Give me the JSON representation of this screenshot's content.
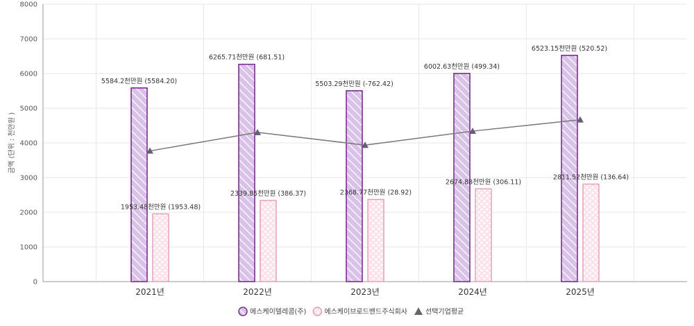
{
  "chart_data": {
    "type": "bar",
    "ylabel": "금액 (단위 : 천만원 )",
    "ylim": [
      0,
      8000
    ],
    "yticks": [
      "0",
      "1000",
      "2000",
      "3000",
      "4000",
      "5000",
      "6000",
      "7000",
      "8000"
    ],
    "categories": [
      "2021년",
      "2022년",
      "2023년",
      "2024년",
      "2025년"
    ],
    "series": [
      {
        "name": "에스케이텔레콤(주)",
        "type": "bar",
        "color": "#7b2d8e",
        "fill": "#d9c2e8",
        "values": [
          5584.2,
          6265.71,
          5503.29,
          6002.63,
          6523.15
        ],
        "labels": [
          "5584.2천만원 (5584.20)",
          "6265.71천만원 (681.51)",
          "5503.29천만원 (-762.42)",
          "6002.63천만원 (499.34)",
          "6523.15천만원 (520.52)"
        ]
      },
      {
        "name": "에스케이브로드밴드주식회사",
        "type": "bar",
        "color": "#e59ab6",
        "fill": "#fbe3ec",
        "values": [
          1953.48,
          2339.85,
          2368.77,
          2674.88,
          2811.52
        ],
        "labels": [
          "1953.48천만원 (1953.48)",
          "2339.85천만원 (386.37)",
          "2368.77천만원 (28.92)",
          "2674.88천만원 (306.11)",
          "2811.52천만원 (136.64)"
        ]
      },
      {
        "name": "선택기업평균",
        "type": "line",
        "color": "#777777",
        "marker": "#6b5a80",
        "values": [
          3768.84,
          4302.78,
          3936.03,
          4338.76,
          4667.34
        ]
      }
    ],
    "legend_position": "bottom",
    "grid": true
  }
}
